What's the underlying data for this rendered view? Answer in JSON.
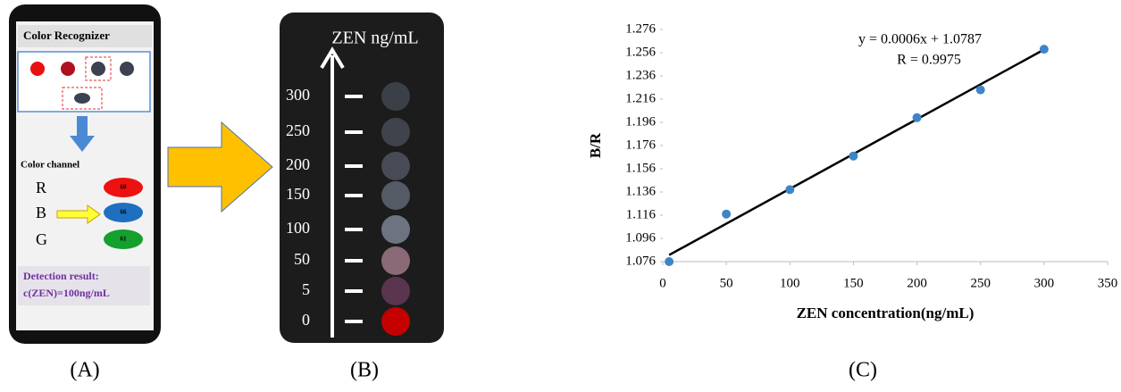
{
  "panel_a": {
    "label": "(A)",
    "app_title": "Color Recognizer",
    "channel_title": "Color channel",
    "channels": [
      {
        "name": "R",
        "value": 60,
        "color": "#ee1111"
      },
      {
        "name": "B",
        "value": 66,
        "color": "#1f6fc0"
      },
      {
        "name": "G",
        "value": 61,
        "color": "#14a02c"
      }
    ],
    "result_line1": "Detection result:",
    "result_line2": "c(ZEN)=100ng/mL"
  },
  "panel_b": {
    "label": "(B)",
    "axis_title": "ZEN ng/mL",
    "levels": [
      300,
      250,
      200,
      150,
      100,
      50,
      5,
      0
    ],
    "colors": [
      "#3a3f48",
      "#3e434c",
      "#464b55",
      "#555b66",
      "#6e7382",
      "#8a6a77",
      "#5b3450",
      "#c40000"
    ]
  },
  "chart_data": {
    "type": "scatter",
    "panel_label": "(C)",
    "x_label": "ZEN concentration(ng/mL)",
    "y_label": "B/R",
    "equation": "y = 0.0006x + 1.0787",
    "r_text": "R = 0.9975",
    "trendline": {
      "slope": 0.0006,
      "intercept": 1.0787
    },
    "x": [
      5,
      50,
      100,
      150,
      200,
      250,
      300
    ],
    "values": [
      1.076,
      1.117,
      1.138,
      1.167,
      1.2,
      1.224,
      1.259
    ],
    "color": "#3d85c6",
    "xlim": [
      0,
      350
    ],
    "xticks": [
      0,
      50,
      100,
      150,
      200,
      250,
      300,
      350
    ],
    "ylim": [
      1.076,
      1.276
    ],
    "yticks": [
      1.076,
      1.096,
      1.116,
      1.136,
      1.156,
      1.176,
      1.196,
      1.216,
      1.236,
      1.256,
      1.276
    ]
  }
}
